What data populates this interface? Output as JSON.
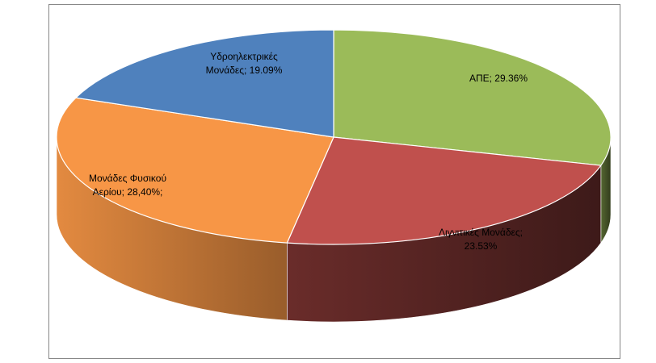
{
  "chart_data": {
    "type": "pie",
    "style": "3d-tilted",
    "slices": [
      {
        "key": "ape",
        "label_lines": [
          "ΑΠΕ; 29.36%"
        ],
        "value": 29.36,
        "color": "#9bbb59"
      },
      {
        "key": "lignite",
        "label_lines": [
          "Λιγνιτικές Μονάδες;",
          "23.53%"
        ],
        "value": 23.53,
        "color": "#c0504d"
      },
      {
        "key": "gas",
        "label_lines": [
          "Μονάδες Φυσικού",
          "Αερίου; 28,40%;"
        ],
        "value": 28.4,
        "color": "#f79646"
      },
      {
        "key": "hydro",
        "label_lines": [
          "Υδροηλεκτρικές",
          "Μονάδες; 19.09%"
        ],
        "value": 19.09,
        "color": "#4f81bd"
      }
    ],
    "legend": "none",
    "title": ""
  }
}
